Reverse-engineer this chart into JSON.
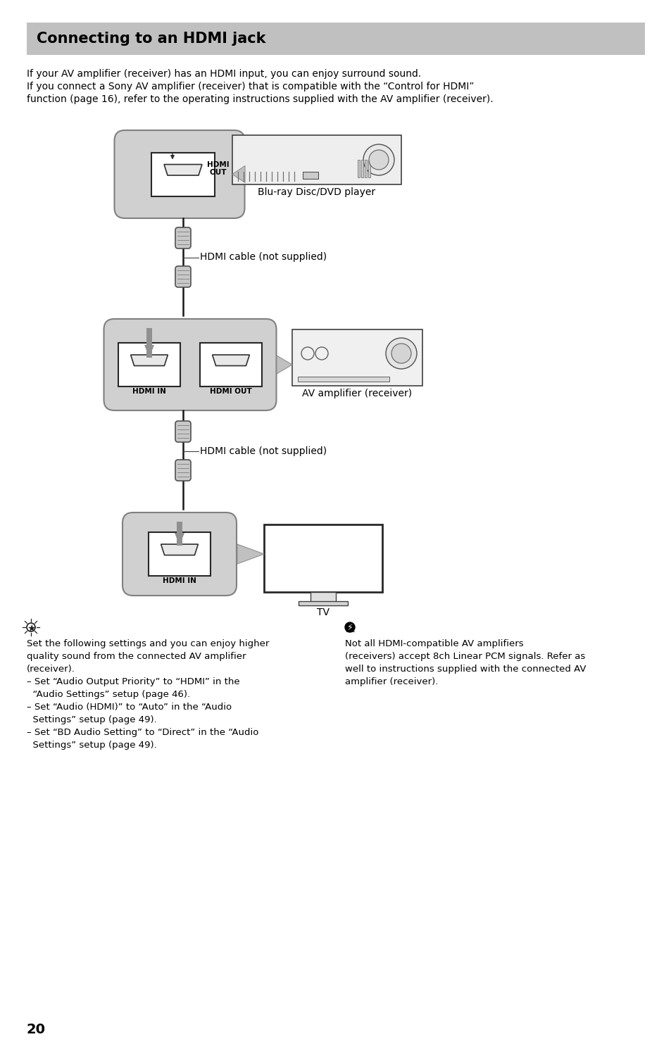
{
  "title": "Connecting to an HDMI jack",
  "title_bg": "#c0c0c0",
  "page_bg": "#ffffff",
  "intro_line1": "If your AV amplifier (receiver) has an HDMI input, you can enjoy surround sound.",
  "intro_line2": "If you connect a Sony AV amplifier (receiver) that is compatible with the “Control for HDMI”",
  "intro_line3": "function (page 16), refer to the operating instructions supplied with the AV amplifier (receiver).",
  "label_bluray": "Blu-ray Disc/DVD player",
  "label_av_amp": "AV amplifier (receiver)",
  "label_tv": "TV",
  "label_hdmi_cable1": "HDMI cable (not supplied)",
  "label_hdmi_cable2": "HDMI cable (not supplied)",
  "label_hdmi_in_mid": "HDMI IN",
  "label_hdmi_out_mid": "HDMI OUT",
  "label_hdmi_in_bot": "HDMI IN",
  "tip_text": "Set the following settings and you can enjoy higher\nquality sound from the connected AV amplifier\n(receiver).\n– Set “Audio Output Priority” to “HDMI” in the\n  “Audio Settings” setup (page 46).\n– Set “Audio (HDMI)” to “Auto” in the “Audio\n  Settings” setup (page 49).\n– Set “BD Audio Setting” to “Direct” in the “Audio\n  Settings” setup (page 49).",
  "note_text": "Not all HDMI-compatible AV amplifiers\n(receivers) accept 8ch Linear PCM signals. Refer as\nwell to instructions supplied with the connected AV\namplifier (receiver).",
  "page_number": "20",
  "box_fill": "#d0d0d0",
  "port_fill": "#ffffff",
  "arrow_fill": "#909090",
  "cable_color": "#000000",
  "connector_fill": "#c8c8c8",
  "tri_fill": "#c0c0c0"
}
